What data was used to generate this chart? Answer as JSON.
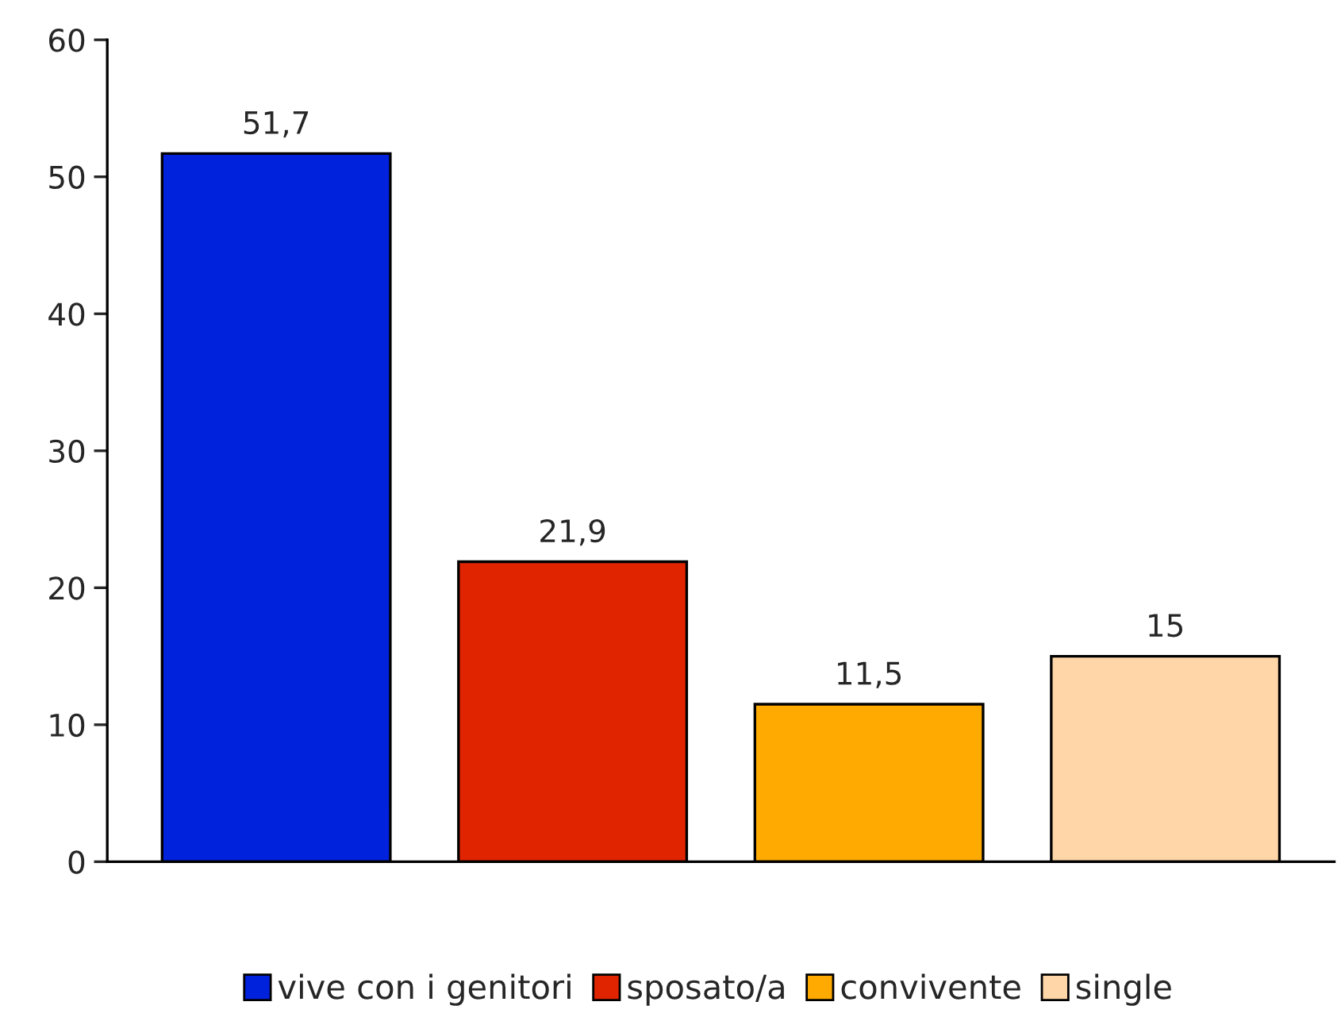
{
  "chart_data": {
    "type": "bar",
    "categories": [
      null,
      null,
      null,
      null
    ],
    "series": [
      {
        "name": "vive con i genitori",
        "color": "#0022dd",
        "values": [
          51.7,
          null,
          null,
          null
        ],
        "value_labels": [
          "51,7",
          null,
          null,
          null
        ]
      },
      {
        "name": "sposato/a",
        "color": "#e02400",
        "values": [
          null,
          21.9,
          null,
          null
        ],
        "value_labels": [
          null,
          "21,9",
          null,
          null
        ]
      },
      {
        "name": "convivente",
        "color": "#ffaa00",
        "values": [
          null,
          null,
          11.5,
          null
        ],
        "value_labels": [
          null,
          null,
          "11,5",
          null
        ]
      },
      {
        "name": "single",
        "color": "#ffd6a8",
        "values": [
          null,
          null,
          null,
          15
        ],
        "value_labels": [
          null,
          null,
          null,
          "15"
        ]
      }
    ],
    "ylim": [
      0,
      60
    ],
    "yticks": [
      0,
      10,
      20,
      30,
      40,
      50,
      60
    ],
    "grid": false,
    "legend": "bottom"
  }
}
